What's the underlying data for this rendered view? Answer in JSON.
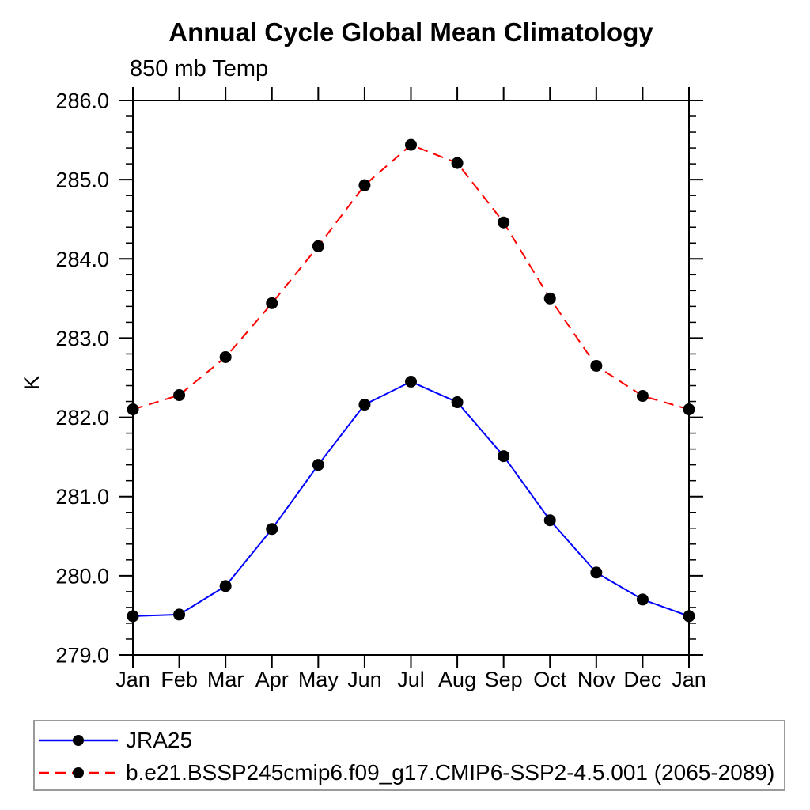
{
  "chart_data": {
    "type": "line",
    "title": "Annual Cycle Global Mean Climatology",
    "subtitle": "850 mb Temp",
    "ylabel": "K",
    "x_tick_labels": [
      "Jan",
      "Feb",
      "Mar",
      "Apr",
      "May",
      "Jun",
      "Jul",
      "Aug",
      "Sep",
      "Oct",
      "Nov",
      "Dec",
      "Jan"
    ],
    "y_ticks": [
      279.0,
      280.0,
      281.0,
      282.0,
      283.0,
      284.0,
      285.0,
      286.0
    ],
    "y_tick_labels": [
      "279.0",
      "280.0",
      "281.0",
      "282.0",
      "283.0",
      "284.0",
      "285.0",
      "286.0"
    ],
    "ylim": [
      279.0,
      286.0
    ],
    "y_minor_step": 0.2,
    "grid": false,
    "legend_position": "bottom",
    "axis_color": "#000000",
    "series": [
      {
        "name": "JRA25",
        "color": "#0000ff",
        "style": "solid",
        "marker": "circle",
        "marker_color": "#000000",
        "values": [
          279.49,
          279.51,
          279.87,
          280.59,
          281.4,
          282.16,
          282.45,
          282.19,
          281.51,
          280.7,
          280.04,
          279.7,
          279.49
        ]
      },
      {
        "name": "b.e21.BSSP245cmip6.f09_g17.CMIP6-SSP2-4.5.001 (2065-2089)",
        "color": "#ff0000",
        "style": "dashed",
        "marker": "circle",
        "marker_color": "#000000",
        "values": [
          282.1,
          282.28,
          282.76,
          283.44,
          284.16,
          284.93,
          285.44,
          285.21,
          284.46,
          283.5,
          282.65,
          282.27,
          282.1
        ]
      }
    ]
  }
}
